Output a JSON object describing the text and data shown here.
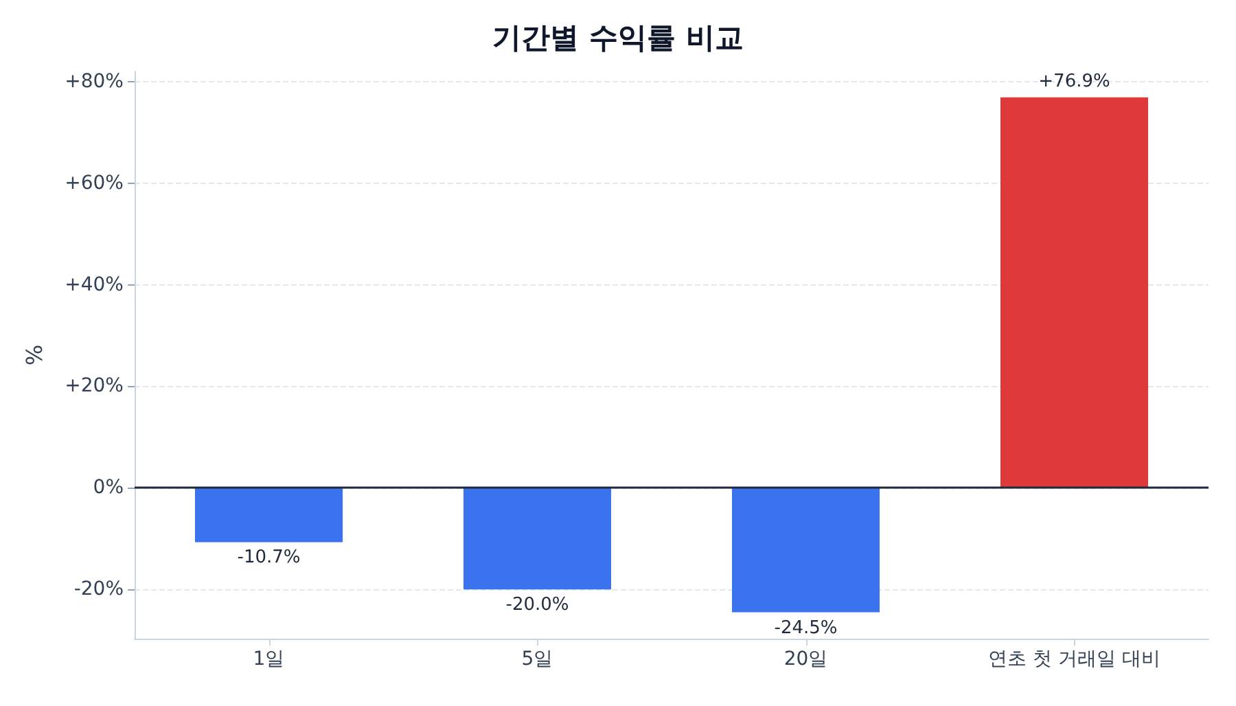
{
  "chart_data": {
    "type": "bar",
    "title": "기간별 수익률 비교",
    "ylabel": "%",
    "categories": [
      "1일",
      "5일",
      "20일",
      "연초 첫 거래일 대비"
    ],
    "values": [
      -10.7,
      -20.0,
      -24.5,
      76.9
    ],
    "colors": [
      "#3b73ee",
      "#3b73ee",
      "#3b73ee",
      "#de3a3a"
    ],
    "value_labels": [
      "-10.7%",
      "-20.0%",
      "-24.5%",
      "+76.9%"
    ],
    "ylim": [
      -29.7,
      82
    ],
    "yticks": [
      {
        "value": -20,
        "label": "-20%"
      },
      {
        "value": 0,
        "label": "0%"
      },
      {
        "value": 20,
        "label": "+20%"
      },
      {
        "value": 40,
        "label": "+40%"
      },
      {
        "value": 60,
        "label": "+60%"
      },
      {
        "value": 80,
        "label": "+80%"
      }
    ],
    "ref_lines": [
      {
        "axis": "y",
        "value": 0,
        "color": "#1e293b"
      }
    ],
    "grid": "y"
  }
}
